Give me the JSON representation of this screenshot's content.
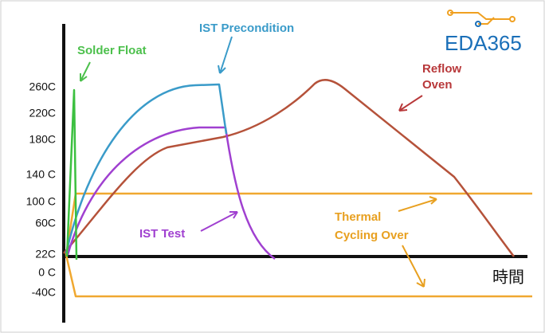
{
  "logo": "EDA365",
  "y_tick_labels": [
    "260C",
    "220C",
    "180C",
    "140 C",
    "100 C",
    "60C",
    "22C",
    "0 C",
    "-40C"
  ],
  "x_axis_label": "時間",
  "annotations": {
    "solder_float": "Solder Float",
    "ist_precondition": "IST Precondition",
    "ist_test": "IST Test",
    "reflow_oven": [
      "Reflow",
      "Oven"
    ],
    "thermal_cycling": [
      "Thermal",
      "Cycling Over"
    ]
  }
}
